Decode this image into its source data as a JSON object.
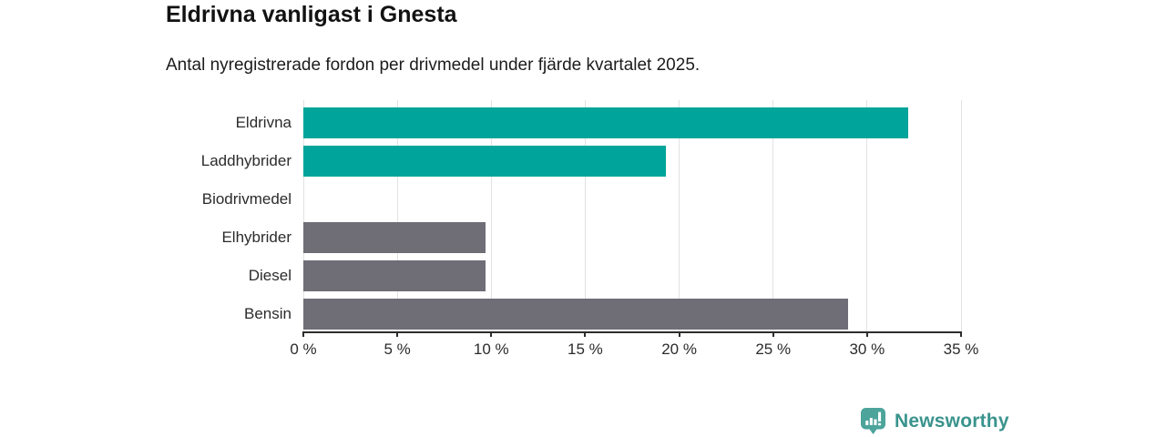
{
  "header": {
    "title": "Eldrivna vanligast i Gnesta",
    "subtitle": "Antal nyregistrerade fordon per drivmedel under fjärde kvartalet 2025."
  },
  "chart_data": {
    "type": "bar",
    "orientation": "horizontal",
    "title": "Eldrivna vanligast i Gnesta",
    "subtitle": "Antal nyregistrerade fordon per drivmedel under fjärde kvartalet 2025.",
    "categories": [
      "Eldrivna",
      "Laddhybrider",
      "Biodrivmedel",
      "Elhybrider",
      "Diesel",
      "Bensin"
    ],
    "values": [
      32.2,
      19.3,
      0,
      9.7,
      9.7,
      29.0
    ],
    "bar_colors": [
      "#00a49a",
      "#00a49a",
      "#00a49a",
      "#6f6e77",
      "#6f6e77",
      "#6f6e77"
    ],
    "xlim": [
      0,
      35
    ],
    "x_ticks": [
      0,
      5,
      10,
      15,
      20,
      25,
      30,
      35
    ],
    "tick_suffix": " %",
    "xlabel": "",
    "ylabel": "",
    "grid": true,
    "legend": "none",
    "colors": {
      "highlight": "#00a49a",
      "neutral": "#6f6e77",
      "gridline": "#e2e2e2",
      "axis": "#2d2d2d"
    }
  },
  "branding": {
    "name": "Newsworthy",
    "text_color": "#3a938d",
    "icon_color": "#4ca49b",
    "icon": "newsworthy-chart-bubble-icon"
  }
}
